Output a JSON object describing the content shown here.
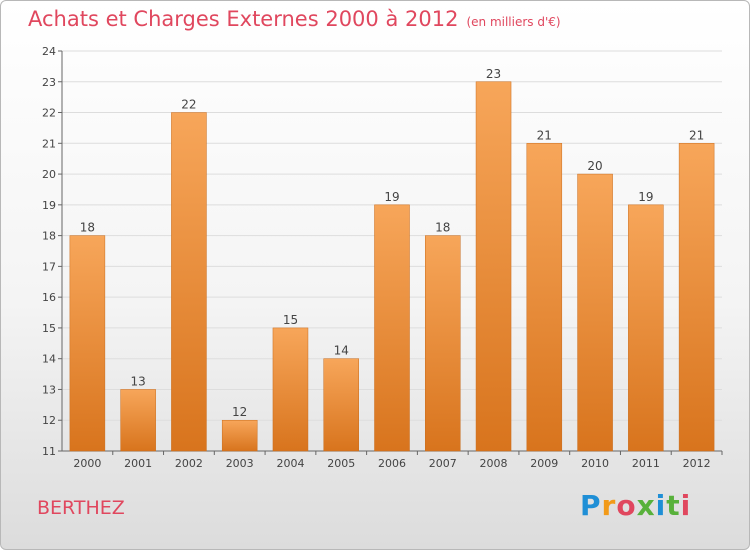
{
  "header": {
    "title": "Achats et Charges Externes 2000 à 2012",
    "subtitle": "(en milliers d'€)"
  },
  "footer": {
    "commune": "BERTHEZ",
    "logo_text": "Proxiti"
  },
  "colors": {
    "title": "#e0475e",
    "bar_light": "#f7a65a",
    "bar_dark": "#d8741d",
    "grid": "#dddddd"
  },
  "chart_data": {
    "type": "bar",
    "title": "Achats et Charges Externes 2000 à 2012",
    "subtitle": "(en milliers d'€)",
    "categories": [
      "2000",
      "2001",
      "2002",
      "2003",
      "2004",
      "2005",
      "2006",
      "2007",
      "2008",
      "2009",
      "2010",
      "2011",
      "2012"
    ],
    "values": [
      18,
      13,
      22,
      12,
      15,
      14,
      19,
      18,
      23,
      21,
      20,
      19,
      21
    ],
    "data_labels": [
      "18",
      "13",
      "22",
      "12",
      "15",
      "14",
      "19",
      "18",
      "23",
      "21",
      "20",
      "19",
      "21"
    ],
    "yticks": [
      "11",
      "12",
      "13",
      "14",
      "15",
      "16",
      "17",
      "18",
      "19",
      "20",
      "21",
      "22",
      "23",
      "24"
    ],
    "ylim": [
      11,
      24
    ],
    "xlabel": "",
    "ylabel": "",
    "grid": true
  }
}
